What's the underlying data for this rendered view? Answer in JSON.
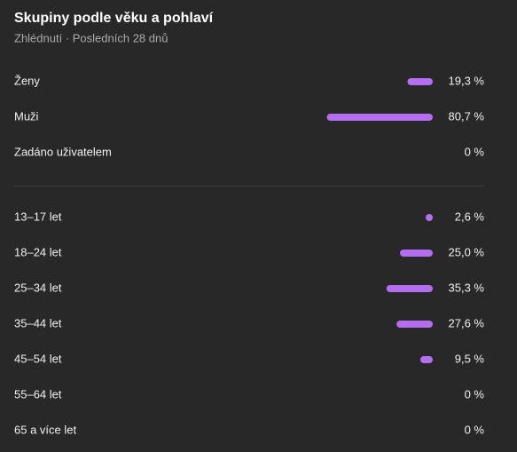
{
  "chart_data": [
    {
      "type": "bar",
      "title": "Skupiny podle věku a pohlaví",
      "subtitle": "Zhlédnutí · Posledních 28 dnů",
      "categories": [
        "Ženy",
        "Muži",
        "Zadáno uživatelem"
      ],
      "values": [
        19.3,
        80.7,
        0
      ],
      "value_labels": [
        "19,3 %",
        "80,7 %",
        "0 %"
      ],
      "color": "#b56ef0"
    },
    {
      "type": "bar",
      "categories": [
        "13–17 let",
        "18–24 let",
        "25–34 let",
        "35–44 let",
        "45–54 let",
        "55–64 let",
        "65 a více let"
      ],
      "values": [
        2.6,
        25.0,
        35.3,
        27.6,
        9.5,
        0,
        0
      ],
      "value_labels": [
        "2,6 %",
        "25,0 %",
        "35,3 %",
        "27,6 %",
        "9,5 %",
        "0 %",
        "0 %"
      ],
      "color": "#b56ef0"
    }
  ]
}
